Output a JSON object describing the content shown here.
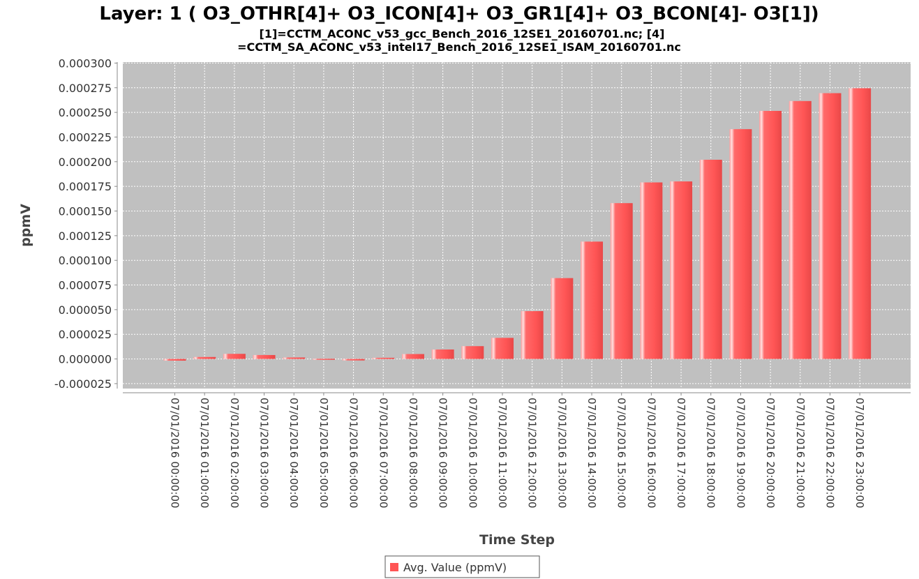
{
  "chart_data": {
    "type": "bar",
    "title": "Layer: 1 ( O3_OTHR[4]+ O3_ICON[4]+ O3_GR1[4]+ O3_BCON[4]- O3[1])",
    "subtitle_lines": [
      "[1]=CCTM_ACONC_v53_gcc_Bench_2016_12SE1_20160701.nc; [4]",
      "=CCTM_SA_ACONC_v53_intel17_Bench_2016_12SE1_ISAM_20160701.nc"
    ],
    "xlabel": "Time Step",
    "ylabel": "ppmV",
    "ylim": [
      -3e-05,
      0.000301
    ],
    "yticks": [
      "-0.000025",
      "0.000000",
      "0.000025",
      "0.000050",
      "0.000075",
      "0.000100",
      "0.000125",
      "0.000150",
      "0.000175",
      "0.000200",
      "0.000225",
      "0.000250",
      "0.000275",
      "0.000300"
    ],
    "categories": [
      "07/01/2016 00:00:00",
      "07/01/2016 01:00:00",
      "07/01/2016 02:00:00",
      "07/01/2016 03:00:00",
      "07/01/2016 04:00:00",
      "07/01/2016 05:00:00",
      "07/01/2016 06:00:00",
      "07/01/2016 07:00:00",
      "07/01/2016 08:00:00",
      "07/01/2016 09:00:00",
      "07/01/2016 10:00:00",
      "07/01/2016 11:00:00",
      "07/01/2016 12:00:00",
      "07/01/2016 13:00:00",
      "07/01/2016 14:00:00",
      "07/01/2016 15:00:00",
      "07/01/2016 16:00:00",
      "07/01/2016 17:00:00",
      "07/01/2016 18:00:00",
      "07/01/2016 19:00:00",
      "07/01/2016 20:00:00",
      "07/01/2016 21:00:00",
      "07/01/2016 22:00:00",
      "07/01/2016 23:00:00"
    ],
    "series": [
      {
        "name": "Avg. Value (ppmV)",
        "color": "#ff5555",
        "values": [
          -1.7e-06,
          2e-06,
          5.2e-06,
          4e-06,
          1.5e-06,
          2e-07,
          -1.5e-06,
          1.2e-06,
          5e-06,
          9.6e-06,
          1.3e-05,
          2.14e-05,
          4.85e-05,
          8.2e-05,
          0.000119,
          0.000158,
          0.000179,
          0.00018,
          0.000202,
          0.000233,
          0.0002515,
          0.0002615,
          0.0002695,
          0.0002745
        ]
      }
    ],
    "grid": true,
    "legend_position": "bottom-center",
    "colors": {
      "plot_background": "#c0c0c0",
      "gridline": "#ffffff",
      "bar": "#ff5555"
    }
  }
}
